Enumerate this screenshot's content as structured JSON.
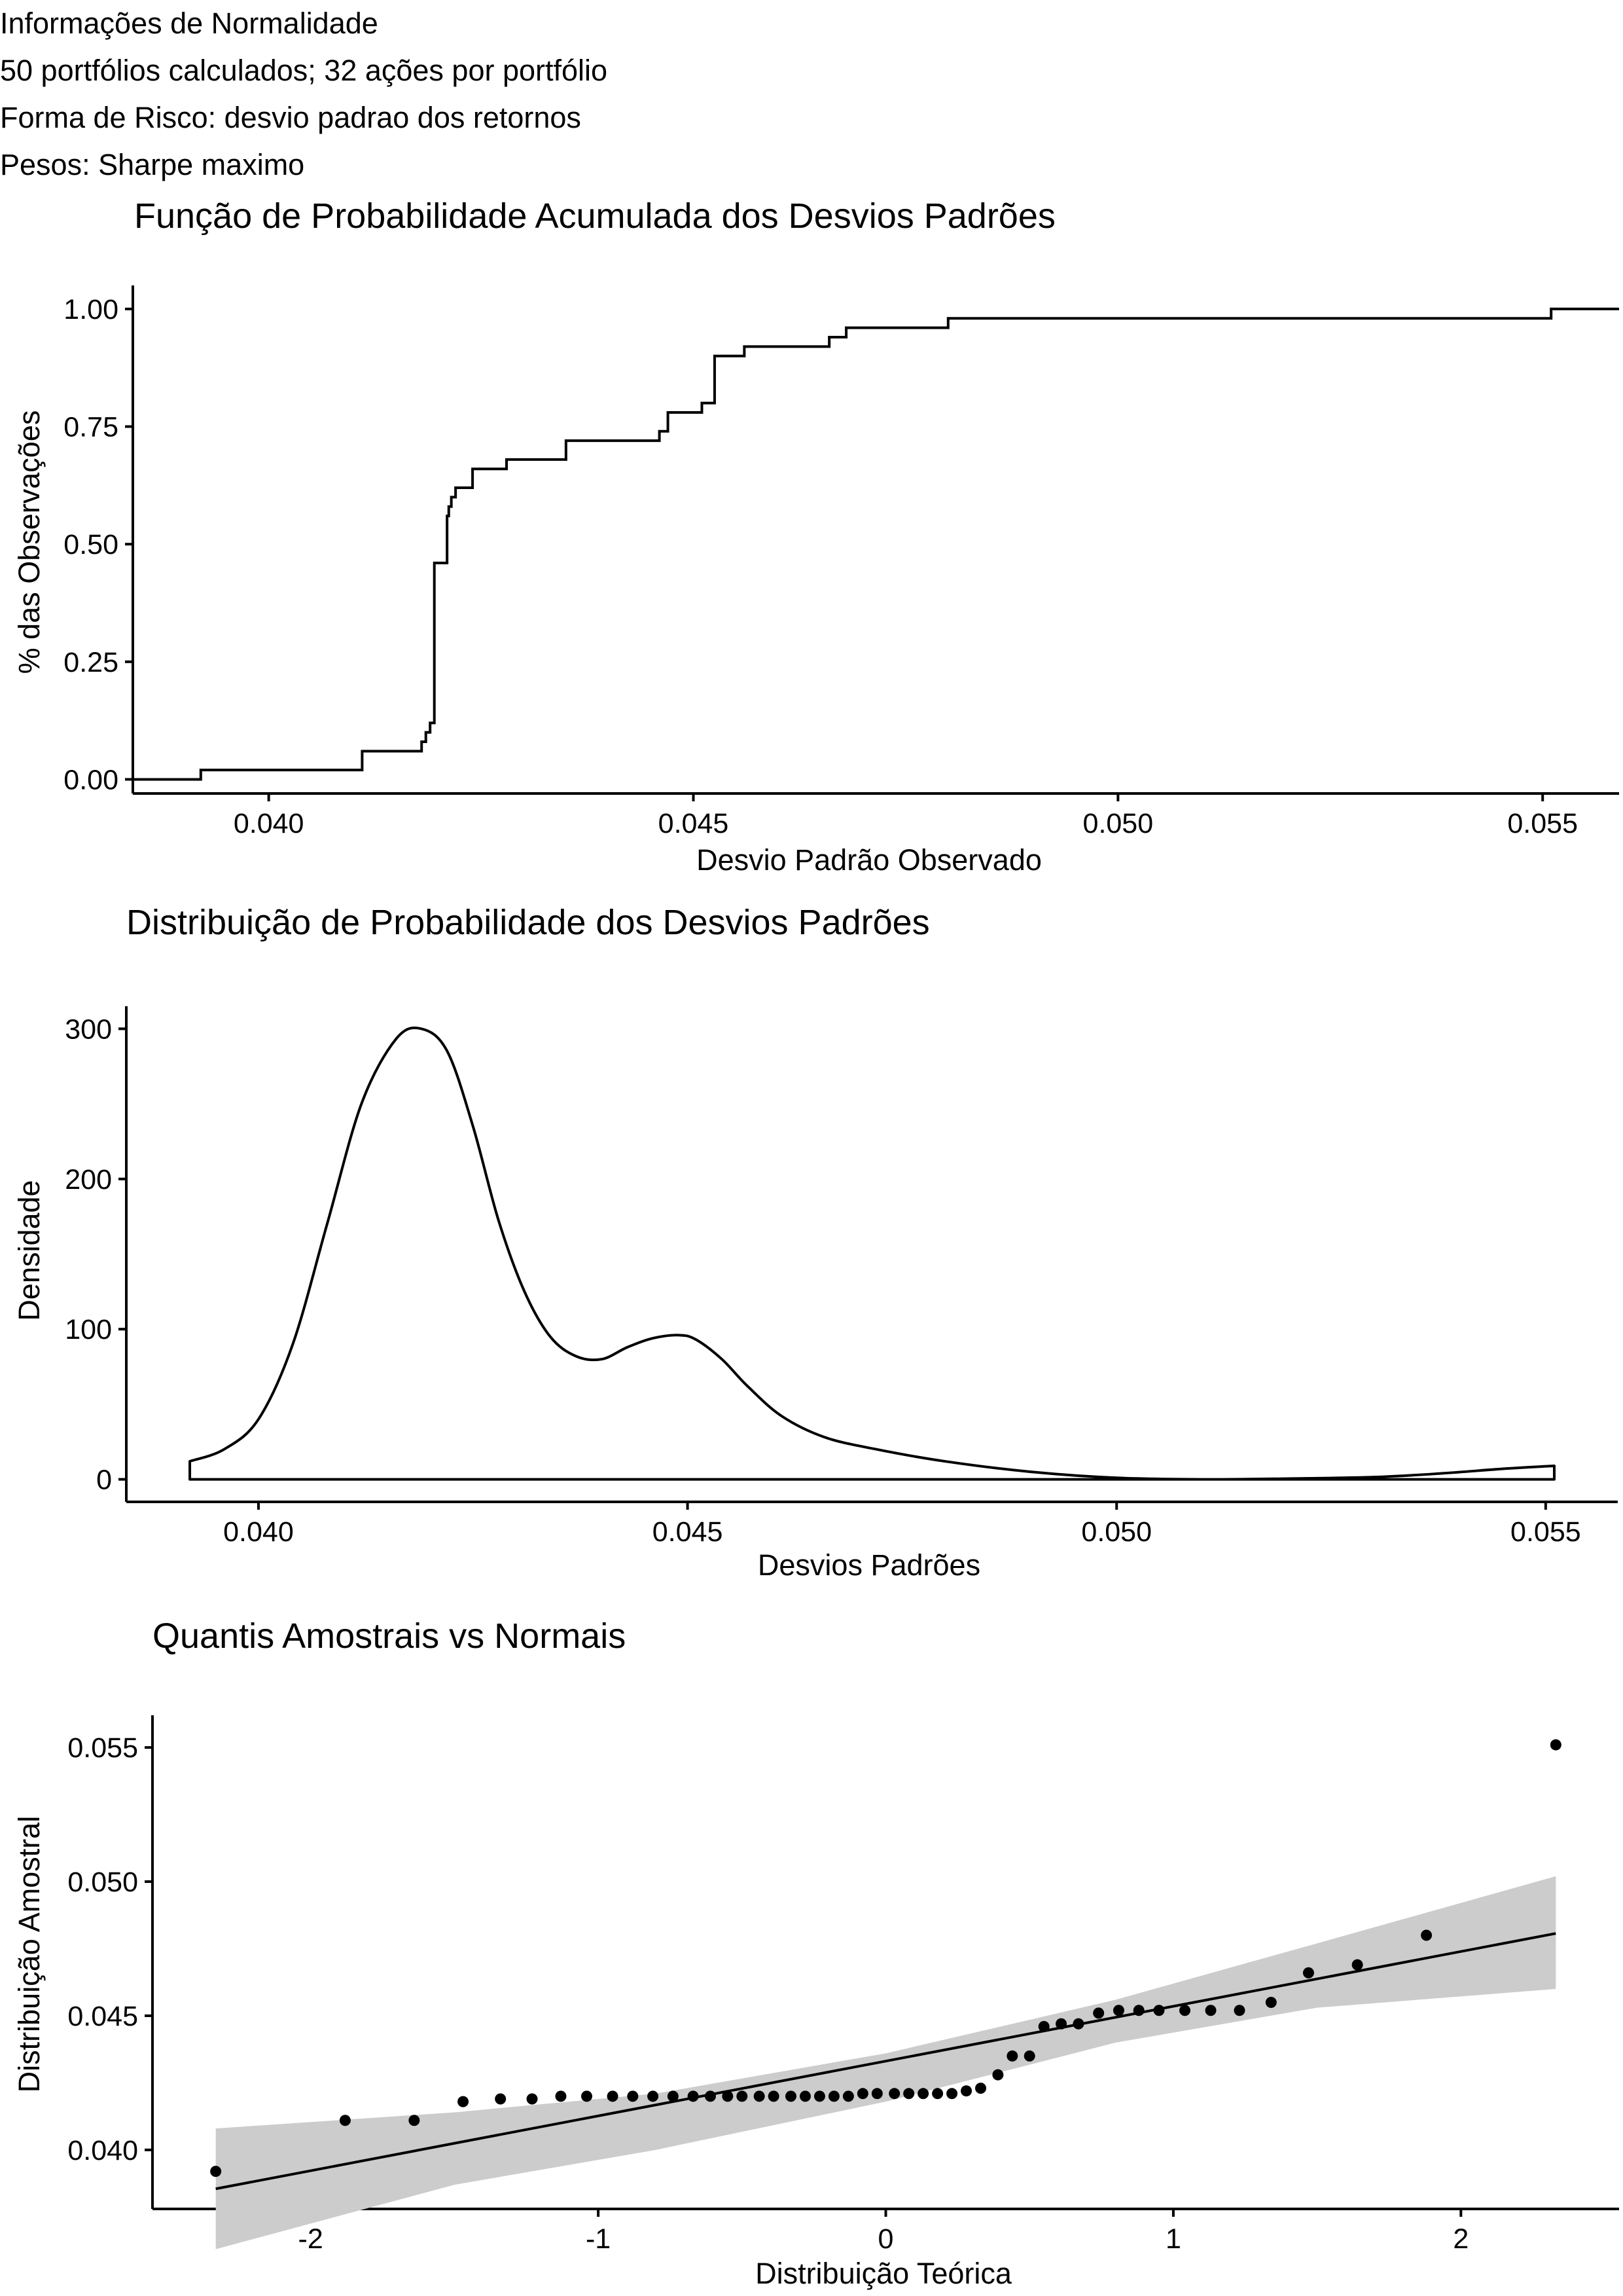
{
  "header": {
    "lines": [
      "Informações de Normalidade",
      "50 portfólios calculados; 32 ações por portfólio",
      "Forma de Risco: desvio padrao dos retornos",
      "Pesos: Sharpe maximo"
    ]
  },
  "chart_data": [
    {
      "type": "line",
      "subtype": "ecdf-step",
      "title": "Função de Probabilidade Acumulada dos Desvios Padrões",
      "xlabel": "Desvio Padrão Observado",
      "ylabel": "% das Observações",
      "xlim": [
        0.0384,
        0.0559
      ],
      "ylim": [
        -0.03,
        1.05
      ],
      "x_ticks": [
        0.04,
        0.045,
        0.05,
        0.055
      ],
      "x_tick_labels": [
        "0.040",
        "0.045",
        "0.050",
        "0.055"
      ],
      "y_ticks": [
        0.0,
        0.25,
        0.5,
        0.75,
        1.0
      ],
      "y_tick_labels": [
        "0.00",
        "0.25",
        "0.50",
        "0.75",
        "1.00"
      ],
      "grid": false,
      "steps": [
        [
          0.0384,
          0.0
        ],
        [
          0.0392,
          0.02
        ],
        [
          0.0411,
          0.06
        ],
        [
          0.0418,
          0.08
        ],
        [
          0.04185,
          0.1
        ],
        [
          0.0419,
          0.12
        ],
        [
          0.04195,
          0.46
        ],
        [
          0.0421,
          0.56
        ],
        [
          0.04212,
          0.58
        ],
        [
          0.04215,
          0.6
        ],
        [
          0.0422,
          0.62
        ],
        [
          0.0424,
          0.66
        ],
        [
          0.0428,
          0.68
        ],
        [
          0.0435,
          0.72
        ],
        [
          0.0446,
          0.74
        ],
        [
          0.0447,
          0.78
        ],
        [
          0.0451,
          0.8
        ],
        [
          0.04525,
          0.9
        ],
        [
          0.0456,
          0.92
        ],
        [
          0.0466,
          0.94
        ],
        [
          0.0468,
          0.96
        ],
        [
          0.048,
          0.98
        ],
        [
          0.0551,
          1.0
        ],
        [
          0.0559,
          1.0
        ]
      ]
    },
    {
      "type": "area",
      "subtype": "density",
      "title": "Distribuição de Probabilidade dos Desvios Padrões",
      "xlabel": "Desvios Padrões",
      "ylabel": "Densidade",
      "xlim": [
        0.03846,
        0.05584
      ],
      "ylim": [
        -15,
        315
      ],
      "x_ticks": [
        0.04,
        0.045,
        0.05,
        0.055
      ],
      "x_tick_labels": [
        "0.040",
        "0.045",
        "0.050",
        "0.055"
      ],
      "y_ticks": [
        0,
        100,
        200,
        300
      ],
      "y_tick_labels": [
        "0",
        "100",
        "200",
        "300"
      ],
      "grid": false,
      "x": [
        0.0392,
        0.0396,
        0.04,
        0.0404,
        0.0408,
        0.0412,
        0.0416,
        0.0419,
        0.0422,
        0.0425,
        0.0428,
        0.0431,
        0.0434,
        0.0437,
        0.044,
        0.0443,
        0.0446,
        0.0449,
        0.0451,
        0.0454,
        0.0457,
        0.0461,
        0.0466,
        0.0472,
        0.048,
        0.049,
        0.05,
        0.051,
        0.052,
        0.053,
        0.0538,
        0.0545,
        0.0551
      ],
      "y": [
        12,
        20,
        40,
        90,
        170,
        250,
        293,
        300,
        285,
        235,
        172,
        125,
        95,
        82,
        80,
        88,
        94,
        96,
        93,
        80,
        62,
        42,
        28,
        20,
        12,
        5,
        1,
        0,
        0.5,
        1.5,
        4,
        7,
        9
      ]
    },
    {
      "type": "scatter",
      "subtype": "qq-plot",
      "title": "Quantis Amostrais vs Normais",
      "xlabel": "Distribuição Teórica",
      "ylabel": "Distribuição Amostral",
      "xlim": [
        -2.55,
        2.55
      ],
      "ylim": [
        0.0378,
        0.0562
      ],
      "x_ticks": [
        -2,
        -1,
        0,
        1,
        2
      ],
      "x_tick_labels": [
        "-2",
        "-1",
        "0",
        "1",
        "2"
      ],
      "y_ticks": [
        0.04,
        0.045,
        0.05,
        0.055
      ],
      "y_tick_labels": [
        "0.040",
        "0.045",
        "0.050",
        "0.055"
      ],
      "grid": false,
      "points": {
        "x": [
          -2.33,
          -1.88,
          -1.64,
          -1.47,
          -1.34,
          -1.23,
          -1.13,
          -1.04,
          -0.95,
          -0.88,
          -0.81,
          -0.74,
          -0.67,
          -0.61,
          -0.55,
          -0.5,
          -0.44,
          -0.39,
          -0.33,
          -0.28,
          -0.23,
          -0.18,
          -0.13,
          -0.08,
          -0.03,
          0.03,
          0.08,
          0.13,
          0.18,
          0.23,
          0.28,
          0.33,
          0.39,
          0.44,
          0.5,
          0.55,
          0.61,
          0.67,
          0.74,
          0.81,
          0.88,
          0.95,
          1.04,
          1.13,
          1.23,
          1.34,
          1.47,
          1.64,
          1.88,
          2.33
        ],
        "y": [
          0.0392,
          0.0411,
          0.0411,
          0.0418,
          0.0419,
          0.0419,
          0.042,
          0.042,
          0.042,
          0.042,
          0.042,
          0.042,
          0.042,
          0.042,
          0.042,
          0.042,
          0.042,
          0.042,
          0.042,
          0.042,
          0.042,
          0.042,
          0.042,
          0.0421,
          0.0421,
          0.0421,
          0.0421,
          0.0421,
          0.0421,
          0.0421,
          0.0422,
          0.0423,
          0.0428,
          0.0435,
          0.0435,
          0.0446,
          0.0447,
          0.0447,
          0.0451,
          0.0452,
          0.0452,
          0.0452,
          0.0452,
          0.0452,
          0.0452,
          0.0455,
          0.0466,
          0.0469,
          0.048,
          0.0551
        ]
      },
      "reference_line": {
        "x": [
          -2.33,
          2.33
        ],
        "y": [
          0.03855,
          0.04807
        ]
      },
      "confidence_band": {
        "x": [
          -2.33,
          -1.5,
          -0.8,
          0.0,
          0.8,
          1.5,
          2.33
        ],
        "lower": [
          0.0363,
          0.0387,
          0.04,
          0.0418,
          0.044,
          0.0453,
          0.046
        ],
        "upper": [
          0.0408,
          0.0414,
          0.0421,
          0.0436,
          0.0456,
          0.0477,
          0.0502
        ]
      }
    }
  ]
}
